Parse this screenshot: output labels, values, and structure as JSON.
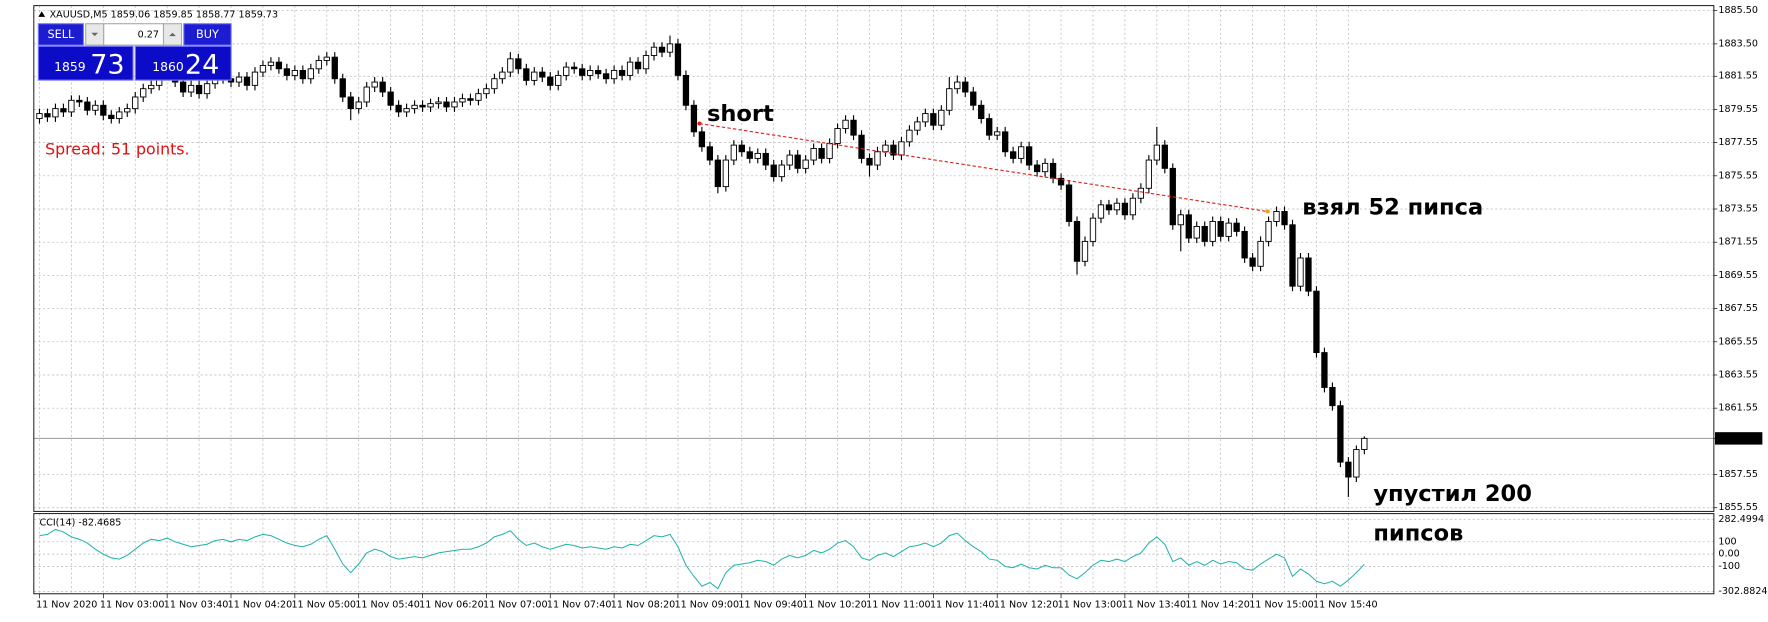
{
  "chart_data": {
    "type": "candlestick",
    "symbol": "XAUUSD,M5",
    "categories": [
      "11 Nov 2020",
      null,
      null,
      null,
      null,
      null,
      null,
      null,
      "11 Nov 03:00",
      null,
      null,
      null,
      null,
      null,
      null,
      null,
      "11 Nov 03:40",
      null,
      null,
      null,
      null,
      null,
      null,
      null,
      "11 Nov 04:20",
      null,
      null,
      null,
      null,
      null,
      null,
      null,
      "11 Nov 05:00",
      null,
      null,
      null,
      null,
      null,
      null,
      null,
      "11 Nov 05:40",
      null,
      null,
      null,
      null,
      null,
      null,
      null,
      "11 Nov 06:20",
      null,
      null,
      null,
      null,
      null,
      null,
      null,
      "11 Nov 07:00",
      null,
      null,
      null,
      null,
      null,
      null,
      null,
      "11 Nov 07:40",
      null,
      null,
      null,
      null,
      null,
      null,
      null,
      "11 Nov 08:20",
      null,
      null,
      null,
      null,
      null,
      null,
      null,
      "11 Nov 09:00",
      null,
      null,
      null,
      null,
      null,
      null,
      null,
      "11 Nov 09:40",
      null,
      null,
      null,
      null,
      null,
      null,
      null,
      "11 Nov 10:20",
      null,
      null,
      null,
      null,
      null,
      null,
      null,
      "11 Nov 11:00",
      null,
      null,
      null,
      null,
      null,
      null,
      null,
      "11 Nov 11:40",
      null,
      null,
      null,
      null,
      null,
      null,
      null,
      "11 Nov 12:20",
      null,
      null,
      null,
      null,
      null,
      null,
      null,
      "11 Nov 13:00",
      null,
      null,
      null,
      null,
      null,
      null,
      null,
      "11 Nov 13:40",
      null,
      null,
      null,
      null,
      null,
      null,
      null,
      "11 Nov 14:20",
      null,
      null,
      null,
      null,
      null,
      null,
      null,
      "11 Nov 15:00",
      null,
      null,
      null,
      null,
      null,
      null,
      null,
      "11 Nov 15:40",
      null,
      null,
      null,
      null,
      null,
      null
    ],
    "open": [
      1879.0,
      1879.3,
      1879.1,
      1879.6,
      1879.4,
      1880.1,
      1880.0,
      1879.5,
      1879.8,
      1879.2,
      1879.0,
      1879.4,
      1879.6,
      1880.3,
      1880.8,
      1881.0,
      1881.6,
      1881.9,
      1881.2,
      1880.6,
      1881.0,
      1880.5,
      1881.1,
      1882.0,
      1881.4,
      1881.2,
      1881.5,
      1881.0,
      1881.8,
      1882.2,
      1882.4,
      1882.0,
      1881.6,
      1881.9,
      1881.4,
      1882.0,
      1882.5,
      1882.7,
      1881.4,
      1880.3,
      1879.6,
      1880.0,
      1880.9,
      1881.2,
      1880.6,
      1879.8,
      1879.4,
      1879.6,
      1879.8,
      1879.7,
      1879.9,
      1880.0,
      1879.7,
      1880.0,
      1880.2,
      1880.1,
      1880.5,
      1880.8,
      1881.4,
      1881.8,
      1882.6,
      1882.0,
      1881.3,
      1881.8,
      1881.5,
      1881.0,
      1881.6,
      1882.1,
      1882.0,
      1881.6,
      1881.9,
      1881.7,
      1881.4,
      1881.9,
      1881.6,
      1882.4,
      1882.0,
      1882.8,
      1883.3,
      1883.0,
      1883.5,
      1881.6,
      1879.8,
      1878.2,
      1877.3,
      1876.5,
      1874.9,
      1876.5,
      1877.4,
      1877.0,
      1876.6,
      1876.9,
      1876.2,
      1875.5,
      1876.2,
      1876.8,
      1876.0,
      1876.5,
      1877.2,
      1876.6,
      1877.5,
      1878.4,
      1878.9,
      1878.0,
      1876.6,
      1876.2,
      1877.0,
      1877.4,
      1876.8,
      1877.6,
      1878.3,
      1878.8,
      1879.3,
      1878.6,
      1879.5,
      1880.8,
      1881.2,
      1880.6,
      1879.8,
      1879.0,
      1878.0,
      1878.2,
      1877.0,
      1876.6,
      1877.3,
      1876.2,
      1875.8,
      1876.3,
      1875.4,
      1875.0,
      1872.8,
      1870.4,
      1871.6,
      1873.0,
      1873.8,
      1873.5,
      1873.9,
      1873.2,
      1874.2,
      1874.8,
      1876.5,
      1877.4,
      1876.0,
      1872.6,
      1873.2,
      1871.8,
      1872.5,
      1871.6,
      1872.8,
      1871.9,
      1872.7,
      1872.2,
      1870.6,
      1870.1,
      1871.6,
      1872.8,
      1873.4,
      1872.6,
      1868.9,
      1870.6,
      1868.6,
      1864.9,
      1862.8,
      1861.7,
      1858.3,
      1857.4,
      1859.06
    ],
    "high": [
      1879.6,
      1879.6,
      1879.9,
      1879.9,
      1880.4,
      1880.4,
      1880.3,
      1880.1,
      1880.1,
      1879.5,
      1879.7,
      1879.9,
      1880.6,
      1881.1,
      1881.3,
      1881.9,
      1882.2,
      1882.2,
      1881.5,
      1881.3,
      1881.3,
      1881.4,
      1882.3,
      1882.3,
      1881.7,
      1881.8,
      1881.8,
      1882.1,
      1882.5,
      1882.7,
      1882.7,
      1882.3,
      1882.2,
      1882.2,
      1882.3,
      1882.8,
      1883.0,
      1883.0,
      1881.7,
      1880.6,
      1880.3,
      1881.2,
      1881.5,
      1881.5,
      1880.9,
      1880.1,
      1879.9,
      1880.1,
      1880.1,
      1880.2,
      1880.3,
      1880.3,
      1880.3,
      1880.5,
      1880.5,
      1880.8,
      1881.1,
      1881.7,
      1882.1,
      1883.0,
      1882.9,
      1882.3,
      1882.1,
      1882.1,
      1881.8,
      1881.9,
      1882.4,
      1882.4,
      1882.3,
      1882.2,
      1882.2,
      1882.0,
      1882.2,
      1882.2,
      1882.7,
      1882.7,
      1883.1,
      1883.6,
      1883.6,
      1884.0,
      1883.8,
      1881.9,
      1880.1,
      1878.5,
      1877.6,
      1876.8,
      1876.8,
      1877.7,
      1877.7,
      1877.3,
      1877.2,
      1877.2,
      1876.5,
      1876.5,
      1877.1,
      1877.1,
      1876.8,
      1877.5,
      1877.5,
      1877.8,
      1878.7,
      1879.2,
      1879.2,
      1878.3,
      1876.9,
      1877.3,
      1877.7,
      1877.7,
      1877.9,
      1878.6,
      1879.1,
      1879.6,
      1879.6,
      1879.8,
      1881.5,
      1881.6,
      1881.5,
      1880.9,
      1880.1,
      1879.3,
      1878.5,
      1878.5,
      1877.3,
      1877.6,
      1877.6,
      1876.5,
      1876.6,
      1876.6,
      1875.7,
      1875.3,
      1873.1,
      1871.9,
      1873.3,
      1874.1,
      1874.1,
      1874.2,
      1874.2,
      1874.5,
      1875.1,
      1876.8,
      1878.5,
      1877.7,
      1876.3,
      1873.5,
      1873.5,
      1872.8,
      1872.8,
      1873.1,
      1873.1,
      1873.0,
      1873.0,
      1872.5,
      1870.9,
      1871.9,
      1873.1,
      1873.7,
      1873.7,
      1872.9,
      1870.9,
      1870.9,
      1868.9,
      1865.2,
      1863.1,
      1862.0,
      1858.6,
      1859.3,
      1859.85
    ],
    "low": [
      1878.7,
      1878.8,
      1878.8,
      1879.1,
      1879.1,
      1879.7,
      1879.2,
      1879.2,
      1878.9,
      1878.7,
      1878.7,
      1879.1,
      1879.3,
      1880.0,
      1880.5,
      1880.7,
      1881.3,
      1880.9,
      1880.3,
      1880.3,
      1880.2,
      1880.2,
      1880.8,
      1881.1,
      1880.9,
      1880.9,
      1880.7,
      1880.7,
      1881.5,
      1881.9,
      1881.7,
      1881.3,
      1881.3,
      1881.1,
      1881.1,
      1881.7,
      1882.2,
      1881.1,
      1880.0,
      1878.9,
      1879.3,
      1879.7,
      1880.6,
      1880.3,
      1879.5,
      1879.1,
      1879.1,
      1879.3,
      1879.4,
      1879.4,
      1879.6,
      1879.4,
      1879.4,
      1879.7,
      1879.8,
      1879.8,
      1880.2,
      1880.5,
      1881.1,
      1881.5,
      1881.7,
      1881.0,
      1881.0,
      1881.2,
      1880.7,
      1880.7,
      1881.3,
      1881.7,
      1881.3,
      1881.3,
      1881.4,
      1881.1,
      1881.1,
      1881.3,
      1881.3,
      1881.7,
      1881.7,
      1882.5,
      1882.7,
      1882.7,
      1881.3,
      1879.5,
      1877.9,
      1877.0,
      1876.2,
      1874.5,
      1874.6,
      1876.2,
      1876.7,
      1876.3,
      1876.3,
      1875.9,
      1875.2,
      1875.2,
      1875.9,
      1875.7,
      1875.7,
      1876.2,
      1876.3,
      1876.3,
      1877.2,
      1878.1,
      1877.7,
      1876.3,
      1875.5,
      1875.9,
      1876.7,
      1876.5,
      1876.5,
      1877.3,
      1878.0,
      1878.5,
      1878.3,
      1878.3,
      1879.2,
      1880.5,
      1880.3,
      1879.5,
      1878.7,
      1877.7,
      1877.7,
      1876.7,
      1876.3,
      1876.3,
      1875.9,
      1875.5,
      1875.5,
      1875.1,
      1874.7,
      1872.5,
      1869.6,
      1870.1,
      1871.3,
      1872.7,
      1873.2,
      1873.2,
      1872.9,
      1872.9,
      1873.9,
      1874.5,
      1876.2,
      1875.7,
      1872.3,
      1871.0,
      1871.5,
      1871.5,
      1871.3,
      1871.3,
      1871.6,
      1871.6,
      1871.9,
      1870.3,
      1869.8,
      1869.8,
      1871.3,
      1872.5,
      1872.3,
      1868.6,
      1868.6,
      1868.3,
      1864.6,
      1862.5,
      1861.4,
      1858.0,
      1856.2,
      1857.1,
      1858.77
    ],
    "close": [
      1879.3,
      1879.1,
      1879.6,
      1879.4,
      1880.1,
      1880.0,
      1879.5,
      1879.8,
      1879.2,
      1879.0,
      1879.4,
      1879.6,
      1880.3,
      1880.8,
      1881.0,
      1881.6,
      1881.9,
      1881.2,
      1880.6,
      1881.0,
      1880.5,
      1881.1,
      1882.0,
      1881.4,
      1881.2,
      1881.5,
      1881.0,
      1881.8,
      1882.2,
      1882.4,
      1882.0,
      1881.6,
      1881.9,
      1881.4,
      1882.0,
      1882.5,
      1882.7,
      1881.4,
      1880.3,
      1879.6,
      1880.0,
      1880.9,
      1881.2,
      1880.6,
      1879.8,
      1879.4,
      1879.6,
      1879.8,
      1879.7,
      1879.9,
      1880.0,
      1879.7,
      1880.0,
      1880.2,
      1880.1,
      1880.5,
      1880.8,
      1881.4,
      1881.8,
      1882.6,
      1882.0,
      1881.3,
      1881.8,
      1881.5,
      1881.0,
      1881.6,
      1882.1,
      1882.0,
      1881.6,
      1881.9,
      1881.7,
      1881.4,
      1881.9,
      1881.6,
      1882.4,
      1882.0,
      1882.8,
      1883.3,
      1883.0,
      1883.5,
      1881.6,
      1879.8,
      1878.2,
      1877.3,
      1876.5,
      1874.9,
      1876.5,
      1877.4,
      1877.0,
      1876.6,
      1876.9,
      1876.2,
      1875.5,
      1876.2,
      1876.8,
      1876.0,
      1876.5,
      1877.2,
      1876.6,
      1877.5,
      1878.4,
      1878.9,
      1878.0,
      1876.6,
      1876.2,
      1877.0,
      1877.4,
      1876.8,
      1877.6,
      1878.3,
      1878.8,
      1879.3,
      1878.6,
      1879.5,
      1880.8,
      1881.2,
      1880.6,
      1879.8,
      1879.0,
      1878.0,
      1878.2,
      1877.0,
      1876.6,
      1877.3,
      1876.2,
      1875.8,
      1876.3,
      1875.4,
      1875.0,
      1872.8,
      1870.4,
      1871.6,
      1873.0,
      1873.8,
      1873.5,
      1873.9,
      1873.2,
      1874.2,
      1874.8,
      1876.5,
      1877.4,
      1876.0,
      1872.6,
      1873.2,
      1871.8,
      1872.5,
      1871.6,
      1872.8,
      1871.9,
      1872.7,
      1872.2,
      1870.6,
      1870.1,
      1871.6,
      1872.8,
      1873.4,
      1872.6,
      1868.9,
      1870.6,
      1868.6,
      1864.9,
      1862.8,
      1861.7,
      1858.3,
      1857.4,
      1859.06,
      1859.73
    ],
    "up_color": "#ffffff",
    "down_color": "#000000",
    "wick_color": "#000000",
    "ylim": [
      1855.4,
      1885.6
    ],
    "yticks": [
      {
        "value": 1885.5,
        "label": "1885.50"
      },
      {
        "value": 1883.5,
        "label": "1883.50"
      },
      1881.55,
      1879.55,
      1877.55,
      1875.55,
      1873.55,
      1871.55,
      1869.55,
      1867.55,
      1865.55,
      1863.55,
      1861.55,
      1859.73,
      1857.55,
      1855.55
    ],
    "price_line": 1859.73,
    "grid": true,
    "trendline": {
      "color": "#e0201b",
      "start": [
        82.7,
        1878.7
      ],
      "end": [
        153.9,
        1873.4
      ]
    },
    "annotations": [
      "short",
      "взял 52 пипса",
      "упустил 200",
      "пипсов"
    ],
    "cci": {
      "name": "CCI(14)",
      "color": "#20b2aa",
      "values": [
        150,
        160,
        200,
        180,
        140,
        120,
        90,
        40,
        0,
        -30,
        -40,
        -10,
        40,
        90,
        120,
        110,
        130,
        100,
        80,
        60,
        70,
        80,
        110,
        120,
        100,
        120,
        110,
        140,
        160,
        150,
        120,
        90,
        70,
        60,
        80,
        120,
        150,
        40,
        -80,
        -150,
        -80,
        10,
        40,
        20,
        -20,
        -40,
        -30,
        -20,
        -30,
        -10,
        10,
        20,
        30,
        40,
        40,
        60,
        90,
        140,
        160,
        190,
        120,
        70,
        90,
        60,
        40,
        60,
        80,
        70,
        50,
        60,
        50,
        40,
        60,
        50,
        80,
        70,
        110,
        150,
        140,
        160,
        60,
        -90,
        -180,
        -260,
        -230,
        -280,
        -150,
        -90,
        -80,
        -70,
        -50,
        -60,
        -90,
        -40,
        -10,
        -30,
        -10,
        30,
        10,
        40,
        90,
        110,
        60,
        -30,
        -50,
        -10,
        10,
        -20,
        20,
        60,
        70,
        90,
        60,
        90,
        150,
        170,
        110,
        60,
        20,
        -40,
        -50,
        -100,
        -110,
        -80,
        -110,
        -120,
        -90,
        -110,
        -110,
        -170,
        -200,
        -150,
        -90,
        -50,
        -60,
        -40,
        -60,
        -20,
        10,
        90,
        140,
        80,
        -60,
        -30,
        -90,
        -60,
        -90,
        -50,
        -80,
        -60,
        -70,
        -120,
        -130,
        -80,
        -40,
        0,
        -30,
        -180,
        -120,
        -160,
        -220,
        -240,
        -220,
        -260,
        -210,
        -150,
        -82.4685
      ],
      "ylim": [
        -302.8824,
        282.4994
      ],
      "yticks": [
        282.4994,
        100,
        {
          "value": 0,
          "label": "0.00"
        },
        -100,
        -302.8824
      ]
    }
  },
  "trade_panel": {
    "sell": "SELL",
    "buy": "BUY",
    "volume": "0.27",
    "sell_big": "1859",
    "sell_small": "73",
    "buy_big": "1860",
    "buy_small": "24",
    "spread": "Spread: 51 points."
  }
}
